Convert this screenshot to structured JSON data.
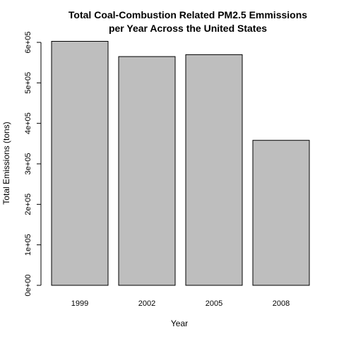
{
  "chart_data": {
    "type": "bar",
    "title": [
      "Total Coal-Combustion Related PM2.5 Emmissions",
      "per Year Across the United States"
    ],
    "xlabel": "Year",
    "ylabel": "Total Emissions (tons)",
    "categories": [
      "1999",
      "2002",
      "2005",
      "2008"
    ],
    "values": [
      602624,
      564940,
      569655,
      358084
    ],
    "ylim": [
      0,
      600000
    ],
    "yticks": [
      0,
      100000,
      200000,
      300000,
      400000,
      500000,
      600000
    ],
    "ytick_labels": [
      "0e+00",
      "1e+05",
      "2e+05",
      "3e+05",
      "4e+05",
      "5e+05",
      "6e+05"
    ],
    "bar_color": "#bebebe",
    "grid": false,
    "legend": "none"
  }
}
